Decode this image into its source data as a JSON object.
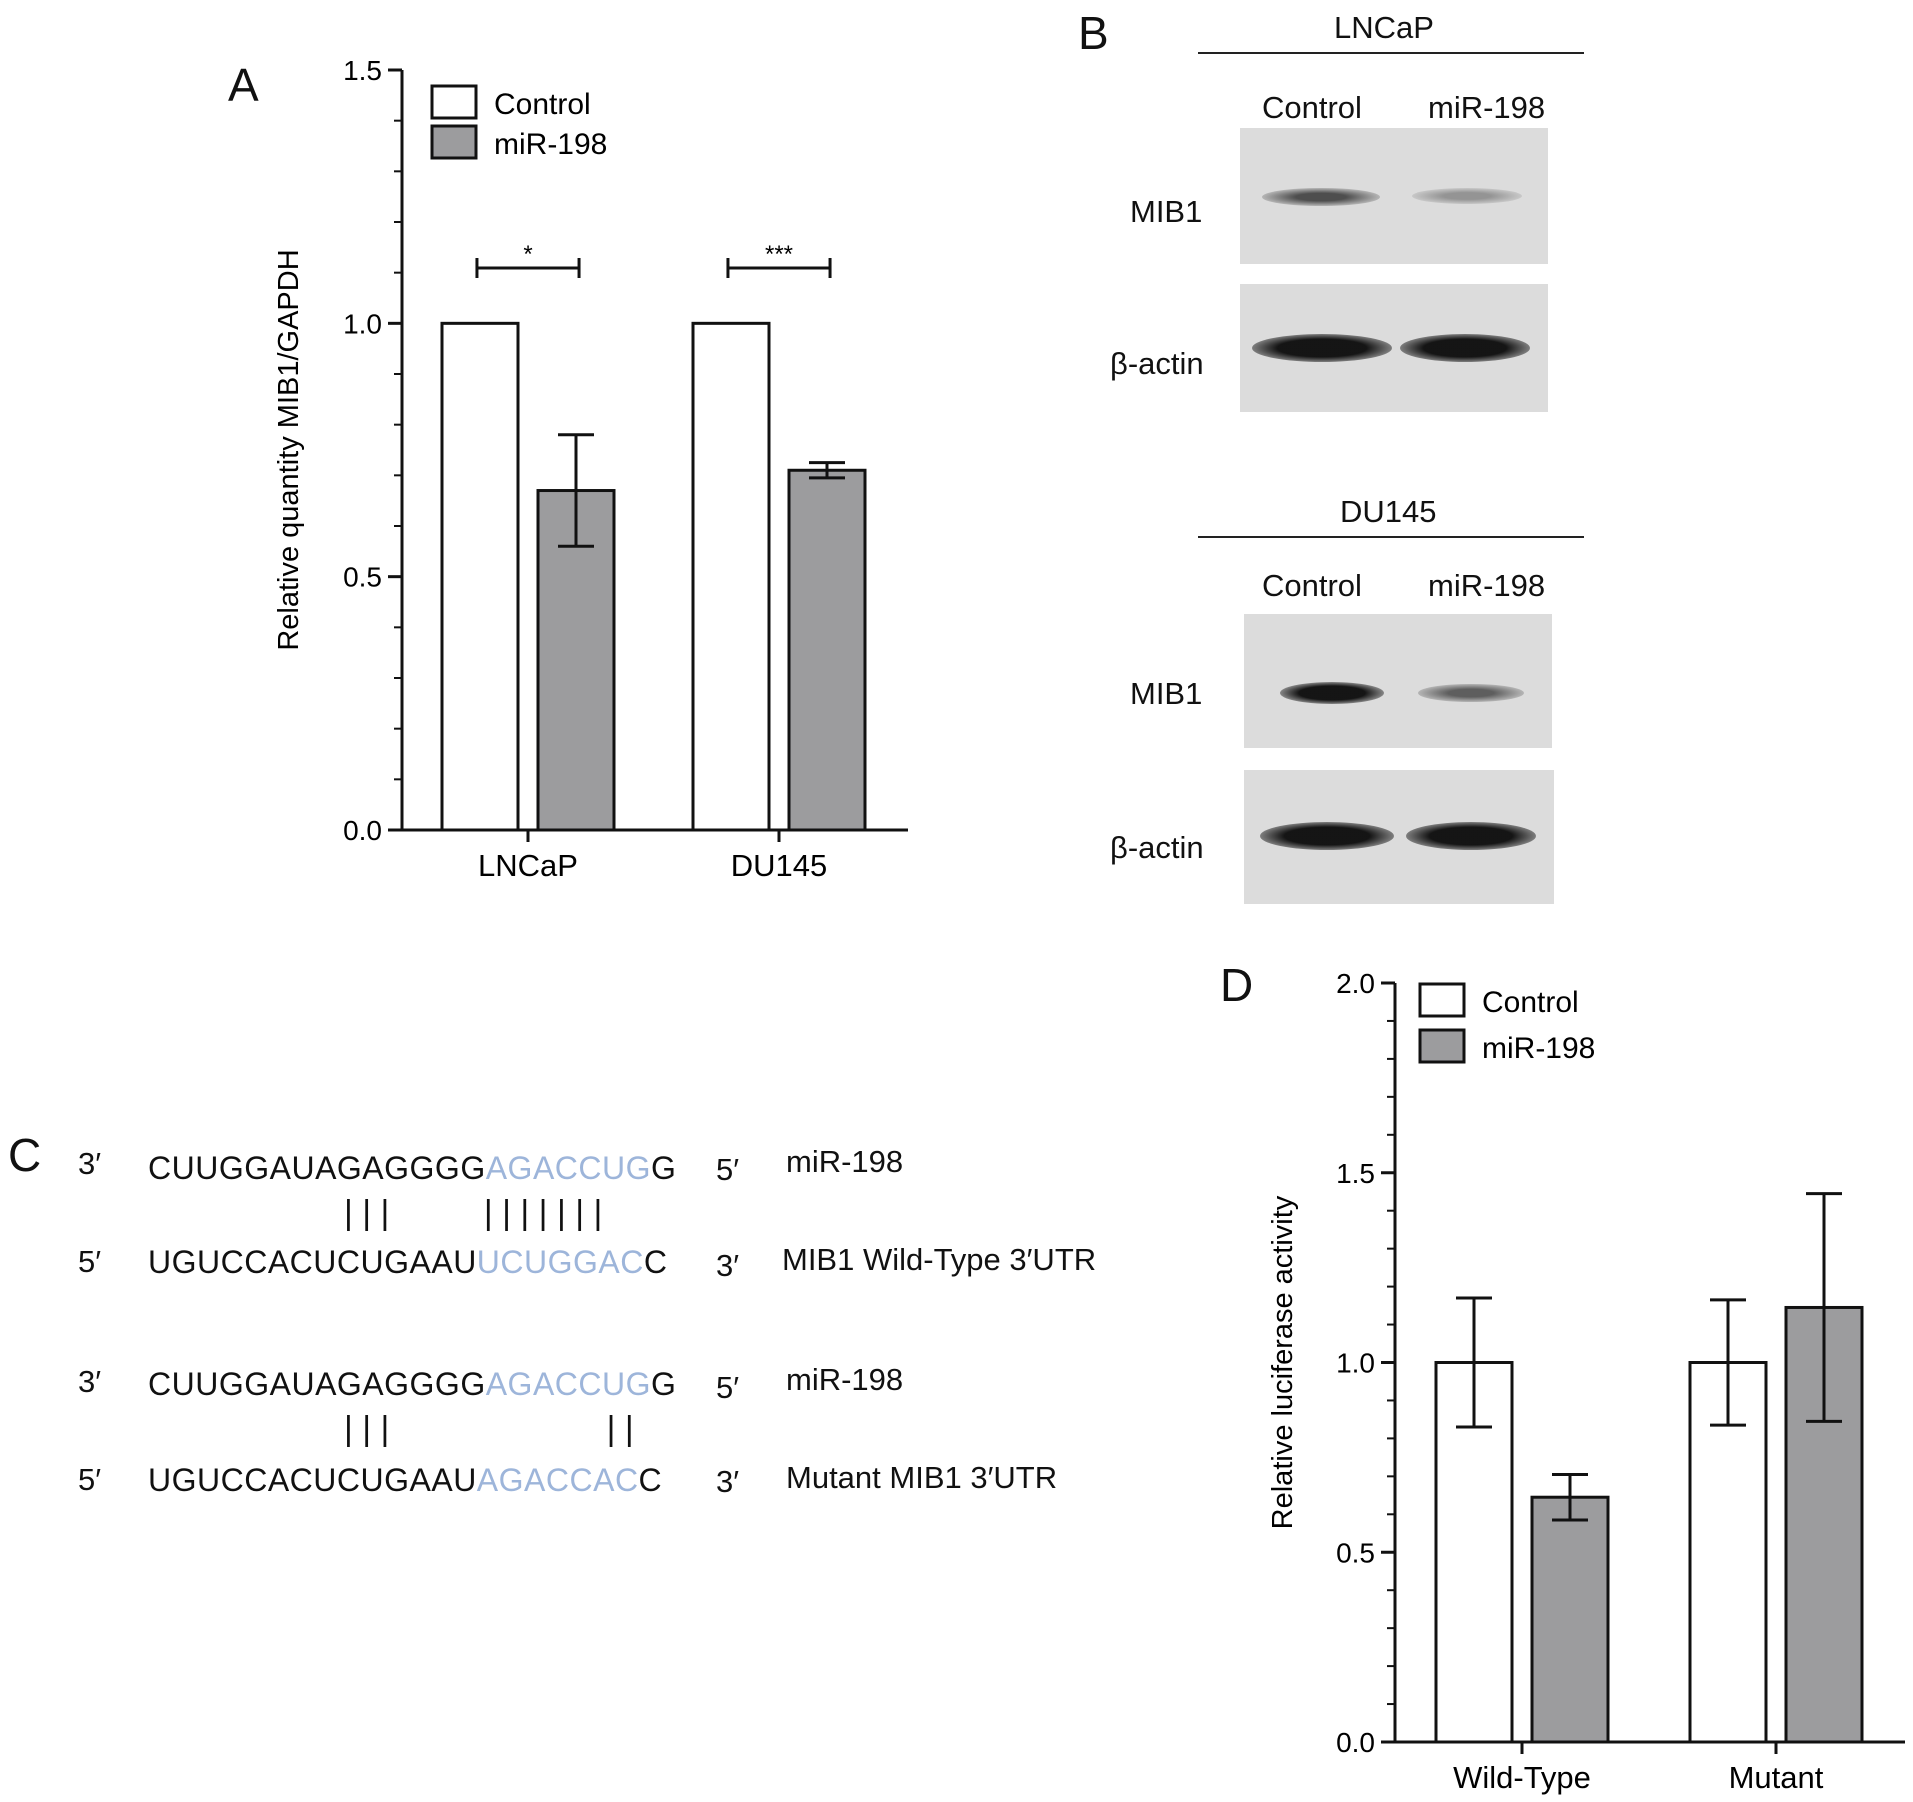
{
  "panels": {
    "a": "A",
    "b": "B",
    "c": "C",
    "d": "D"
  },
  "chart_data": [
    {
      "type": "bar",
      "panel": "A",
      "categories": [
        "LNCaP",
        "DU145"
      ],
      "series": [
        {
          "name": "Control",
          "values": [
            1.0,
            1.0
          ],
          "errors": [
            null,
            null
          ],
          "color": "#ffffff"
        },
        {
          "name": "miR-198",
          "values": [
            0.67,
            0.71
          ],
          "errors": [
            0.11,
            0.015
          ],
          "color": "#9c9c9e"
        }
      ],
      "title": "",
      "xlabel": "",
      "ylabel": "Relative quantity MIB1/GAPDH",
      "ylim": [
        0,
        1.5
      ],
      "yticks": [
        "0.0",
        "0.5",
        "1.0",
        "1.5"
      ],
      "significance": [
        "*",
        "***"
      ],
      "legend": "top-left",
      "grid": false
    },
    {
      "type": "bar",
      "panel": "D",
      "categories": [
        "Wild-Type",
        "Mutant"
      ],
      "series": [
        {
          "name": "Control",
          "values": [
            1.0,
            1.0
          ],
          "errors": [
            0.17,
            0.165
          ],
          "color": "#ffffff"
        },
        {
          "name": "miR-198",
          "values": [
            0.645,
            1.145
          ],
          "errors": [
            0.06,
            0.3
          ],
          "color": "#9c9c9e"
        }
      ],
      "title": "",
      "xlabel": "",
      "ylabel": "Relative luciferase activity",
      "ylim": [
        0,
        2.0
      ],
      "yticks": [
        "0.0",
        "0.5",
        "1.0",
        "1.5",
        "2.0"
      ],
      "legend": "top-left",
      "grid": false
    }
  ],
  "western": {
    "blocks": [
      {
        "title": "LNCaP",
        "columns": [
          "Control",
          "miR-198"
        ],
        "rows": [
          {
            "label": "MIB1",
            "intensity": [
              0.6,
              0.3
            ]
          },
          {
            "label": "β-actin",
            "intensity": [
              1.0,
              1.0
            ]
          }
        ]
      },
      {
        "title": "DU145",
        "columns": [
          "Control",
          "miR-198"
        ],
        "rows": [
          {
            "label": "MIB1",
            "intensity": [
              1.0,
              0.5
            ]
          },
          {
            "label": "β-actin",
            "intensity": [
              1.0,
              1.0
            ]
          }
        ]
      }
    ]
  },
  "sequences": {
    "pairs": [
      {
        "top": {
          "p_left": "3′",
          "pre": "CUUGGAUAGAGGGG",
          "hl": "AGACCUG",
          "post": "G",
          "p_right": "5′",
          "name": "miR-198"
        },
        "bars": "| | |          | | | | | | |",
        "bottom": {
          "p_left": "5′",
          "pre": "UGUCCACUCUGAAU",
          "hl": "UCUGGAC",
          "post": "C",
          "p_right": "3′",
          "name": "MIB1 Wild-Type 3′UTR"
        }
      },
      {
        "top": {
          "p_left": "3′",
          "pre": "CUUGGAUAGAGGGG",
          "hl": "AGACCUG",
          "post": "G",
          "p_right": "5′",
          "name": "miR-198"
        },
        "bars": "| | |                       | |",
        "bottom": {
          "p_left": "5′",
          "pre": "UGUCCACUCUGAAU",
          "hl": "AGACCAC",
          "post": "C",
          "p_right": "3′",
          "name": "Mutant MIB1 3′UTR"
        }
      }
    ]
  }
}
